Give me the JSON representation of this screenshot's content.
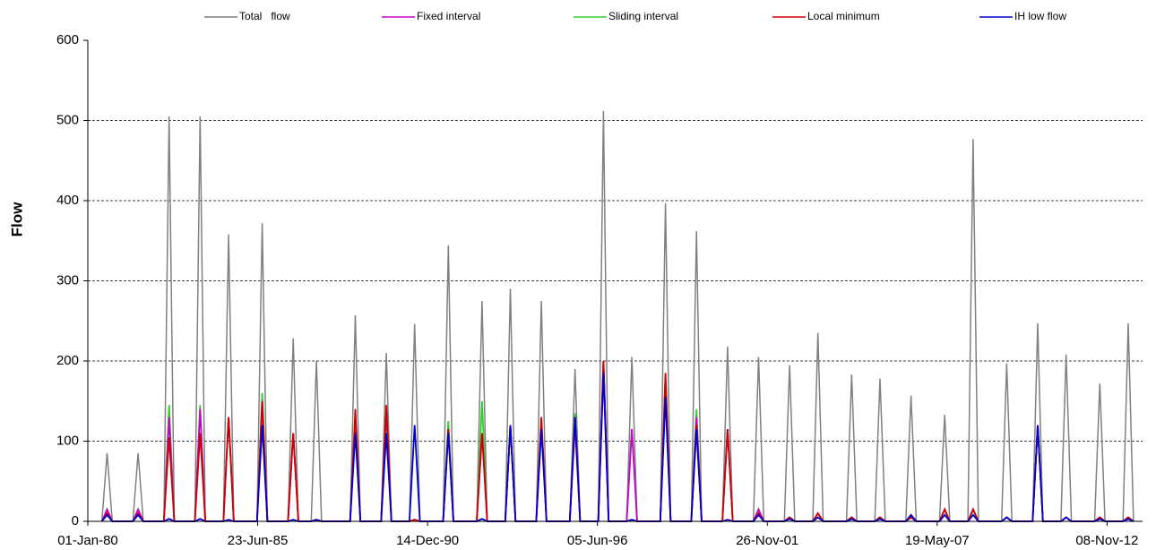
{
  "chart_data": {
    "type": "line",
    "y_label": "Flow",
    "x": [
      "1980-06-15",
      "1980-08-15",
      "1980-10-15",
      "1981-06-15",
      "1981-08-15",
      "1981-10-15",
      "1982-06-15",
      "1982-08-15",
      "1982-10-15",
      "1983-06-15",
      "1983-08-15",
      "1983-10-15",
      "1984-05-15",
      "1984-07-15",
      "1984-09-15",
      "1985-06-15",
      "1985-08-15",
      "1985-10-15",
      "1986-06-15",
      "1986-08-15",
      "1986-10-15",
      "1987-03-15",
      "1987-05-15",
      "1987-07-15",
      "1988-06-15",
      "1988-08-15",
      "1988-10-15",
      "1989-06-15",
      "1989-08-15",
      "1989-10-15",
      "1990-05-15",
      "1990-07-15",
      "1990-09-15",
      "1991-06-15",
      "1991-08-15",
      "1991-10-15",
      "1992-07-15",
      "1992-09-15",
      "1992-11-15",
      "1993-06-15",
      "1993-08-15",
      "1993-10-15",
      "1994-06-15",
      "1994-08-15",
      "1994-10-15",
      "1995-07-15",
      "1995-09-15",
      "1995-11-15",
      "1996-06-15",
      "1996-08-15",
      "1996-10-15",
      "1997-05-15",
      "1997-07-15",
      "1997-09-15",
      "1998-06-15",
      "1998-08-15",
      "1998-10-15",
      "1999-06-15",
      "1999-08-15",
      "1999-10-15",
      "2000-06-15",
      "2000-08-15",
      "2000-10-15",
      "2001-06-15",
      "2001-08-15",
      "2001-10-15",
      "2002-06-15",
      "2002-08-15",
      "2002-10-15",
      "2003-05-15",
      "2003-07-15",
      "2003-09-15",
      "2004-06-15",
      "2004-08-15",
      "2004-10-15",
      "2005-05-15",
      "2005-07-15",
      "2005-09-15",
      "2006-05-15",
      "2006-07-15",
      "2006-09-15",
      "2007-06-15",
      "2007-08-15",
      "2007-10-15",
      "2008-05-15",
      "2008-07-15",
      "2008-09-15",
      "2009-06-15",
      "2009-08-15",
      "2009-10-15",
      "2010-06-15",
      "2010-08-15",
      "2010-10-15",
      "2011-05-15",
      "2011-07-15",
      "2011-09-15",
      "2012-06-15",
      "2012-08-15",
      "2012-10-15",
      "2013-05-15",
      "2013-07-15",
      "2013-09-15"
    ],
    "series": [
      {
        "name": "Total   flow",
        "color": "#808080",
        "values": [
          0,
          85,
          0,
          0,
          85,
          0,
          0,
          505,
          0,
          0,
          505,
          0,
          0,
          358,
          0,
          0,
          372,
          0,
          0,
          228,
          0,
          0,
          200,
          0,
          0,
          257,
          0,
          0,
          210,
          0,
          0,
          246,
          0,
          0,
          344,
          0,
          0,
          275,
          0,
          0,
          290,
          0,
          0,
          275,
          0,
          0,
          190,
          0,
          0,
          512,
          0,
          0,
          205,
          0,
          0,
          397,
          0,
          0,
          362,
          0,
          0,
          218,
          0,
          0,
          205,
          0,
          0,
          195,
          0,
          0,
          235,
          0,
          0,
          183,
          0,
          0,
          178,
          0,
          0,
          157,
          0,
          0,
          133,
          0,
          0,
          477,
          0,
          0,
          197,
          0,
          0,
          247,
          0,
          0,
          208,
          0,
          0,
          172,
          0,
          0,
          247,
          0
        ]
      },
      {
        "name": "Sliding interval",
        "color": "#33cc33",
        "values": [
          0,
          15,
          0,
          0,
          15,
          0,
          0,
          145,
          0,
          0,
          145,
          0,
          0,
          130,
          0,
          0,
          160,
          0,
          0,
          110,
          0,
          0,
          2,
          0,
          0,
          130,
          0,
          0,
          140,
          0,
          0,
          2,
          0,
          0,
          125,
          0,
          0,
          150,
          0,
          0,
          120,
          0,
          0,
          125,
          0,
          0,
          135,
          0,
          0,
          200,
          0,
          0,
          115,
          0,
          0,
          180,
          0,
          0,
          140,
          0,
          0,
          115,
          0,
          0,
          15,
          0,
          0,
          5,
          0,
          0,
          10,
          0,
          0,
          5,
          0,
          0,
          5,
          0,
          0,
          5,
          0,
          0,
          15,
          0,
          0,
          15,
          0,
          0,
          5,
          0,
          0,
          120,
          0,
          0,
          5,
          0,
          0,
          5,
          0,
          0,
          5,
          0
        ]
      },
      {
        "name": "Fixed interval",
        "color": "#cc00cc",
        "values": [
          0,
          15,
          0,
          0,
          15,
          0,
          0,
          130,
          0,
          0,
          140,
          0,
          0,
          130,
          0,
          0,
          150,
          0,
          0,
          110,
          0,
          0,
          2,
          0,
          0,
          120,
          0,
          0,
          140,
          0,
          0,
          2,
          0,
          0,
          115,
          0,
          0,
          110,
          0,
          0,
          120,
          0,
          0,
          125,
          0,
          0,
          120,
          0,
          0,
          200,
          0,
          0,
          115,
          0,
          0,
          160,
          0,
          0,
          130,
          0,
          0,
          115,
          0,
          0,
          15,
          0,
          0,
          5,
          0,
          0,
          10,
          0,
          0,
          5,
          0,
          0,
          5,
          0,
          0,
          5,
          0,
          0,
          15,
          0,
          0,
          15,
          0,
          0,
          5,
          0,
          0,
          120,
          0,
          0,
          5,
          0,
          0,
          5,
          0,
          0,
          5,
          0
        ]
      },
      {
        "name": "Local minimum",
        "color": "#cc0000",
        "values": [
          0,
          10,
          0,
          0,
          10,
          0,
          0,
          105,
          0,
          0,
          110,
          0,
          0,
          130,
          0,
          0,
          150,
          0,
          0,
          110,
          0,
          0,
          2,
          0,
          0,
          140,
          0,
          0,
          145,
          0,
          0,
          2,
          0,
          0,
          115,
          0,
          0,
          110,
          0,
          0,
          120,
          0,
          0,
          130,
          0,
          0,
          130,
          0,
          0,
          200,
          0,
          0,
          2,
          0,
          0,
          185,
          0,
          0,
          120,
          0,
          0,
          115,
          0,
          0,
          10,
          0,
          0,
          5,
          0,
          0,
          10,
          0,
          0,
          5,
          0,
          0,
          5,
          0,
          0,
          5,
          0,
          0,
          15,
          0,
          0,
          15,
          0,
          0,
          5,
          0,
          0,
          120,
          0,
          0,
          5,
          0,
          0,
          5,
          0,
          0,
          5,
          0
        ]
      },
      {
        "name": "IH low flow",
        "color": "#0000cc",
        "values": [
          0,
          8,
          0,
          0,
          8,
          0,
          0,
          3,
          0,
          0,
          3,
          0,
          0,
          2,
          0,
          0,
          120,
          0,
          0,
          2,
          0,
          0,
          2,
          0,
          0,
          110,
          0,
          0,
          110,
          0,
          0,
          120,
          0,
          0,
          110,
          0,
          0,
          3,
          0,
          0,
          120,
          0,
          0,
          115,
          0,
          0,
          130,
          0,
          0,
          185,
          0,
          0,
          2,
          0,
          0,
          155,
          0,
          0,
          115,
          0,
          0,
          2,
          0,
          0,
          8,
          0,
          0,
          3,
          0,
          0,
          5,
          0,
          0,
          3,
          0,
          0,
          3,
          0,
          0,
          8,
          0,
          0,
          8,
          0,
          0,
          8,
          0,
          0,
          5,
          0,
          0,
          120,
          0,
          0,
          5,
          0,
          0,
          3,
          0,
          0,
          3,
          0
        ]
      }
    ],
    "legend_order": [
      0,
      2,
      1,
      3,
      4
    ],
    "xlim": [
      "1980-01-01",
      "2013-12-31"
    ],
    "xticks": [
      {
        "value": "1980-01-01",
        "label": "01-Jan-80"
      },
      {
        "value": "1985-06-23",
        "label": "23-Jun-85"
      },
      {
        "value": "1990-12-14",
        "label": "14-Dec-90"
      },
      {
        "value": "1996-06-05",
        "label": "05-Jun-96"
      },
      {
        "value": "2001-11-26",
        "label": "26-Nov-01"
      },
      {
        "value": "2007-05-19",
        "label": "19-May-07"
      },
      {
        "value": "2012-11-08",
        "label": "08-Nov-12"
      }
    ],
    "ylim": [
      0,
      600
    ],
    "yticks": [
      0,
      100,
      200,
      300,
      400,
      500,
      600
    ],
    "grid": true,
    "legend": "top"
  }
}
